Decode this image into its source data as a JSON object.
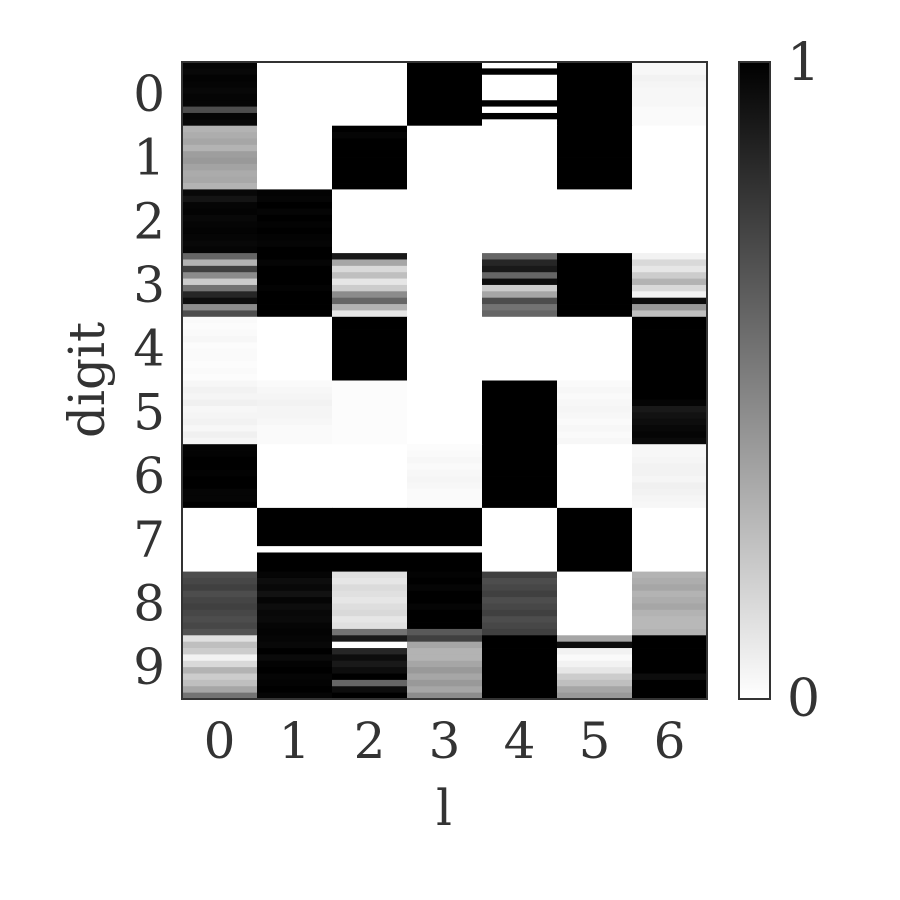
{
  "chart_data": {
    "type": "heatmap",
    "title": "",
    "xlabel": "l",
    "ylabel": "digit",
    "x_categories": [
      "0",
      "1",
      "2",
      "3",
      "4",
      "5",
      "6"
    ],
    "y_categories": [
      "0",
      "1",
      "2",
      "3",
      "4",
      "5",
      "6",
      "7",
      "8",
      "9"
    ],
    "rows_per_digit": 10,
    "colormap": "grays",
    "color_low": "#ffffff",
    "color_high": "#000000",
    "colorbar": {
      "min": 0,
      "max": 1,
      "min_label": "0",
      "max_label": "1"
    },
    "grid": false,
    "values": [
      [
        [
          0.98,
          0.97,
          0.99,
          0.98,
          0.97,
          0.98,
          0.98,
          0.7,
          0.98,
          0.97
        ],
        [
          0,
          0,
          0,
          0,
          0,
          0,
          0,
          0,
          0,
          0
        ],
        [
          0,
          0,
          0,
          0,
          0,
          0,
          0,
          0,
          0,
          0
        ],
        [
          1,
          1,
          1,
          1,
          1,
          1,
          1,
          1,
          1,
          1
        ],
        [
          0,
          1,
          0,
          0,
          0,
          0,
          1,
          0,
          1,
          0
        ],
        [
          1,
          1,
          1,
          1,
          1,
          1,
          1,
          1,
          1,
          1
        ],
        [
          0.03,
          0.03,
          0.05,
          0.04,
          0.03,
          0.03,
          0.03,
          0.02,
          0.02,
          0.02
        ]
      ],
      [
        [
          0.3,
          0.32,
          0.35,
          0.3,
          0.38,
          0.4,
          0.36,
          0.33,
          0.34,
          0.3
        ],
        [
          0,
          0,
          0,
          0,
          0,
          0,
          0,
          0,
          0,
          0
        ],
        [
          1,
          0.98,
          1,
          1,
          1,
          1,
          1,
          1,
          1,
          1
        ],
        [
          0,
          0,
          0,
          0,
          0,
          0,
          0,
          0,
          0,
          0
        ],
        [
          0,
          0,
          0,
          0,
          0,
          0,
          0,
          0,
          0,
          0
        ],
        [
          1,
          1,
          1,
          1,
          1,
          1,
          1,
          1,
          1,
          1
        ],
        [
          0,
          0,
          0,
          0,
          0,
          0,
          0,
          0,
          0,
          0
        ]
      ],
      [
        [
          0.97,
          0.92,
          0.98,
          0.99,
          0.97,
          0.98,
          0.99,
          0.98,
          0.97,
          0.98
        ],
        [
          0.99,
          0.98,
          1,
          0.98,
          1,
          0.99,
          1,
          0.99,
          0.98,
          1
        ],
        [
          0,
          0,
          0,
          0,
          0,
          0,
          0,
          0,
          0,
          0
        ],
        [
          0,
          0,
          0,
          0,
          0,
          0,
          0,
          0,
          0,
          0
        ],
        [
          0,
          0,
          0,
          0,
          0,
          0,
          0,
          0,
          0,
          0
        ],
        [
          0,
          0,
          0,
          0,
          0,
          0,
          0,
          0,
          0,
          0
        ],
        [
          0,
          0,
          0,
          0,
          0,
          0,
          0,
          0,
          0,
          0
        ]
      ],
      [
        [
          0.6,
          0.3,
          0.75,
          0.45,
          0.2,
          0.55,
          0.85,
          0.95,
          0.45,
          0.7
        ],
        [
          1,
          0.98,
          1,
          1,
          1,
          0.99,
          1,
          1,
          1,
          1
        ],
        [
          0.9,
          0.35,
          0.15,
          0.25,
          0.1,
          0.2,
          0.45,
          0.6,
          0.3,
          0.1
        ],
        [
          0,
          0,
          0,
          0,
          0,
          0,
          0,
          0,
          0,
          0
        ],
        [
          0.6,
          0.85,
          0.9,
          0.6,
          0.95,
          0.2,
          0.35,
          0.7,
          0.55,
          0.6
        ],
        [
          1,
          1,
          1,
          1,
          1,
          1,
          1,
          1,
          1,
          1
        ],
        [
          0.05,
          0.15,
          0.1,
          0.2,
          0.3,
          0.15,
          0.05,
          0.95,
          0.4,
          0.25
        ]
      ],
      [
        [
          0.02,
          0.01,
          0.02,
          0.03,
          0.01,
          0.02,
          0.02,
          0.01,
          0.02,
          0.01
        ],
        [
          0,
          0,
          0,
          0,
          0,
          0,
          0,
          0,
          0,
          0
        ],
        [
          1,
          1,
          1,
          1,
          1,
          1,
          1,
          1,
          1,
          1
        ],
        [
          0,
          0,
          0,
          0,
          0,
          0,
          0,
          0,
          0,
          0
        ],
        [
          0,
          0,
          0,
          0,
          0,
          0,
          0,
          0,
          0,
          0
        ],
        [
          0,
          0,
          0,
          0,
          0,
          0,
          0,
          0,
          0,
          0
        ],
        [
          1,
          1,
          1,
          1,
          1,
          1,
          1,
          1,
          1,
          1
        ]
      ],
      [
        [
          0.03,
          0.05,
          0.04,
          0.06,
          0.03,
          0.04,
          0.05,
          0.03,
          0.06,
          0.04
        ],
        [
          0.02,
          0.03,
          0.04,
          0.05,
          0.04,
          0.04,
          0.03,
          0.02,
          0.02,
          0.02
        ],
        [
          0.01,
          0.01,
          0.01,
          0.01,
          0.01,
          0.01,
          0.01,
          0.01,
          0.01,
          0.01
        ],
        [
          0,
          0,
          0,
          0,
          0,
          0,
          0,
          0,
          0,
          0
        ],
        [
          1,
          1,
          1,
          1,
          1,
          1,
          1,
          1,
          1,
          1
        ],
        [
          0.02,
          0.03,
          0.02,
          0.03,
          0.04,
          0.03,
          0.02,
          0.03,
          0.02,
          0.03
        ],
        [
          1,
          1,
          1,
          0.98,
          0.9,
          0.93,
          0.95,
          0.97,
          0.98,
          0.96
        ]
      ],
      [
        [
          0.99,
          0.99,
          1,
          1,
          0.99,
          1,
          1,
          0.98,
          0.98,
          1
        ],
        [
          0,
          0,
          0,
          0,
          0,
          0,
          0,
          0,
          0,
          0
        ],
        [
          0,
          0,
          0,
          0,
          0,
          0,
          0,
          0,
          0,
          0
        ],
        [
          0.01,
          0.02,
          0.03,
          0.02,
          0.03,
          0.04,
          0.03,
          0.02,
          0.02,
          0.02
        ],
        [
          1,
          1,
          1,
          1,
          1,
          1,
          1,
          1,
          1,
          1
        ],
        [
          0,
          0,
          0,
          0,
          0,
          0,
          0,
          0,
          0,
          0
        ],
        [
          0.03,
          0.03,
          0.04,
          0.05,
          0.05,
          0.04,
          0.06,
          0.05,
          0.04,
          0.03
        ]
      ],
      [
        [
          0,
          0,
          0,
          0,
          0,
          0,
          0,
          0,
          0,
          0
        ],
        [
          1,
          1,
          1,
          1,
          1,
          1,
          0,
          1,
          1,
          1
        ],
        [
          1,
          1,
          1,
          1,
          1,
          1,
          0,
          1,
          1,
          1
        ],
        [
          1,
          1,
          1,
          1,
          1,
          1,
          0,
          1,
          1,
          1
        ],
        [
          0,
          0,
          0,
          0,
          0,
          0,
          0,
          0,
          0,
          0
        ],
        [
          1,
          1,
          1,
          1,
          1,
          1,
          1,
          1,
          1,
          1
        ],
        [
          0,
          0,
          0,
          0,
          0,
          0,
          0,
          0,
          0,
          0
        ]
      ],
      [
        [
          0.7,
          0.72,
          0.75,
          0.7,
          0.73,
          0.75,
          0.72,
          0.7,
          0.72,
          0.68
        ],
        [
          0.98,
          0.95,
          0.97,
          0.93,
          0.98,
          0.95,
          0.97,
          0.96,
          0.98,
          0.99
        ],
        [
          0.12,
          0.1,
          0.14,
          0.12,
          0.1,
          0.13,
          0.15,
          0.1,
          0.12,
          0.55
        ],
        [
          0.99,
          1,
          0.98,
          1,
          1,
          0.98,
          1,
          1,
          1,
          0.65
        ],
        [
          0.75,
          0.7,
          0.72,
          0.75,
          0.7,
          0.72,
          0.75,
          0.7,
          0.72,
          0.75
        ],
        [
          0,
          0,
          0,
          0,
          0,
          0,
          0,
          0,
          0,
          0
        ],
        [
          0.3,
          0.32,
          0.35,
          0.3,
          0.32,
          0.35,
          0.3,
          0.28,
          0.28,
          0.3
        ]
      ],
      [
        [
          0.12,
          0.25,
          0.2,
          0.05,
          0.15,
          0.3,
          0.2,
          0.25,
          0.35,
          0.55
        ],
        [
          0.98,
          0.97,
          1,
          0.96,
          0.99,
          1,
          0.98,
          0.99,
          1,
          0.98
        ],
        [
          0.9,
          0,
          0.85,
          0.95,
          0.9,
          0.95,
          1,
          0.6,
          0.95,
          1
        ],
        [
          0.75,
          0.35,
          0.3,
          0.3,
          0.35,
          0.4,
          0.35,
          0.4,
          0.35,
          0.45
        ],
        [
          1,
          1,
          1,
          1,
          1,
          1,
          1,
          1,
          1,
          1
        ],
        [
          0.35,
          0.95,
          0.05,
          0.02,
          0.05,
          0.1,
          0.2,
          0.25,
          0.35,
          0.4
        ],
        [
          1,
          1,
          1,
          1,
          1,
          1,
          0.95,
          1,
          1,
          1
        ]
      ]
    ]
  }
}
